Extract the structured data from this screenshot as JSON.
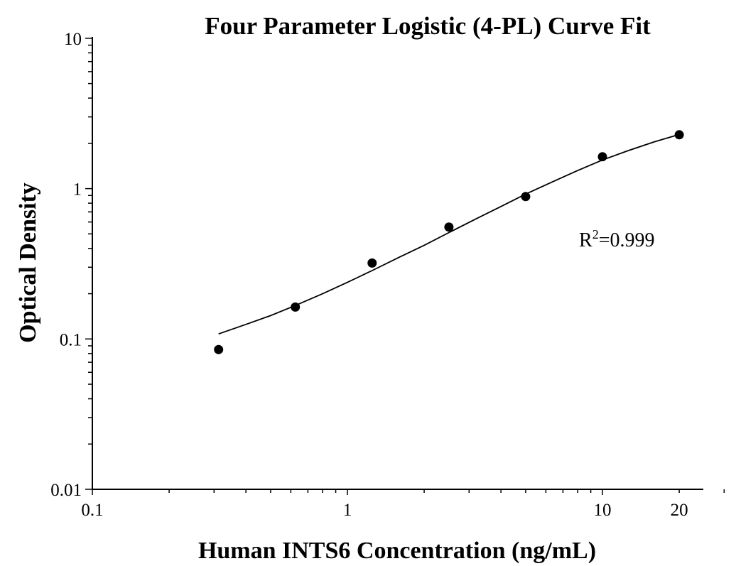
{
  "chart_data": {
    "type": "scatter",
    "title": "Four Parameter Logistic (4-PL) Curve Fit",
    "xlabel": "Human INTS6 Concentration (ng/mL)",
    "ylabel": "Optical Density",
    "x_scale": "log",
    "y_scale": "log",
    "xlim": [
      0.1,
      30
    ],
    "ylim": [
      0.01,
      10
    ],
    "x_ticks": [
      {
        "value": 0.1,
        "label": "0.1"
      },
      {
        "value": 1,
        "label": "1"
      },
      {
        "value": 10,
        "label": "10"
      },
      {
        "value": 20,
        "label": "20"
      }
    ],
    "y_ticks": [
      {
        "value": 0.01,
        "label": "0.01"
      },
      {
        "value": 0.1,
        "label": "0.1"
      },
      {
        "value": 1,
        "label": "1"
      },
      {
        "value": 10,
        "label": "10"
      }
    ],
    "series": [
      {
        "type": "scatter",
        "x": [
          0.3125,
          0.625,
          1.25,
          2.5,
          5,
          10,
          20
        ],
        "y": [
          0.085,
          0.163,
          0.32,
          0.555,
          0.885,
          1.63,
          2.28
        ]
      },
      {
        "type": "line",
        "fit": "4-PL",
        "x": [
          0.3125,
          0.4,
          0.5,
          0.625,
          0.8,
          1,
          1.25,
          1.6,
          2,
          2.5,
          3.2,
          4,
          5,
          6.3,
          8,
          10,
          12.5,
          16,
          20
        ],
        "y": [
          0.108,
          0.125,
          0.143,
          0.167,
          0.2,
          0.238,
          0.285,
          0.35,
          0.42,
          0.51,
          0.63,
          0.76,
          0.92,
          1.1,
          1.32,
          1.55,
          1.78,
          2.05,
          2.29
        ]
      }
    ],
    "annotation": {
      "label": "R",
      "superscript": "2",
      "value": "=0.999"
    },
    "grid": false,
    "legend": "none"
  }
}
